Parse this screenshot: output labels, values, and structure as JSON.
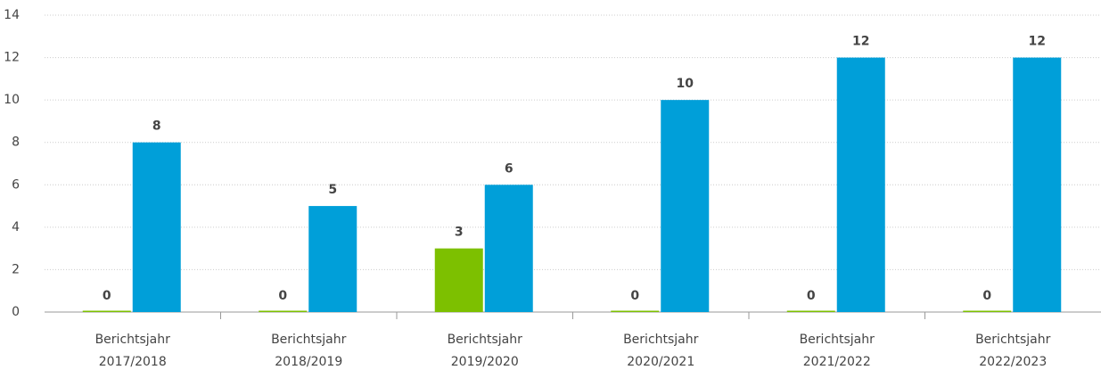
{
  "chart_data": {
    "type": "bar",
    "categories": [
      [
        "Berichtsjahr",
        "2017/2018"
      ],
      [
        "Berichtsjahr",
        "2018/2019"
      ],
      [
        "Berichtsjahr",
        "2019/2020"
      ],
      [
        "Berichtsjahr",
        "2020/2021"
      ],
      [
        "Berichtsjahr",
        "2021/2022"
      ],
      [
        "Berichtsjahr",
        "2022/2023"
      ]
    ],
    "series": [
      {
        "color": "#7dc000",
        "values": [
          0,
          0,
          3,
          0,
          0,
          0
        ]
      },
      {
        "color": "#009fd9",
        "values": [
          8,
          5,
          6,
          10,
          12,
          12
        ]
      }
    ],
    "ylim": [
      0,
      14
    ],
    "yticks": [
      0,
      2,
      4,
      6,
      8,
      10,
      12,
      14
    ],
    "grid": true
  }
}
